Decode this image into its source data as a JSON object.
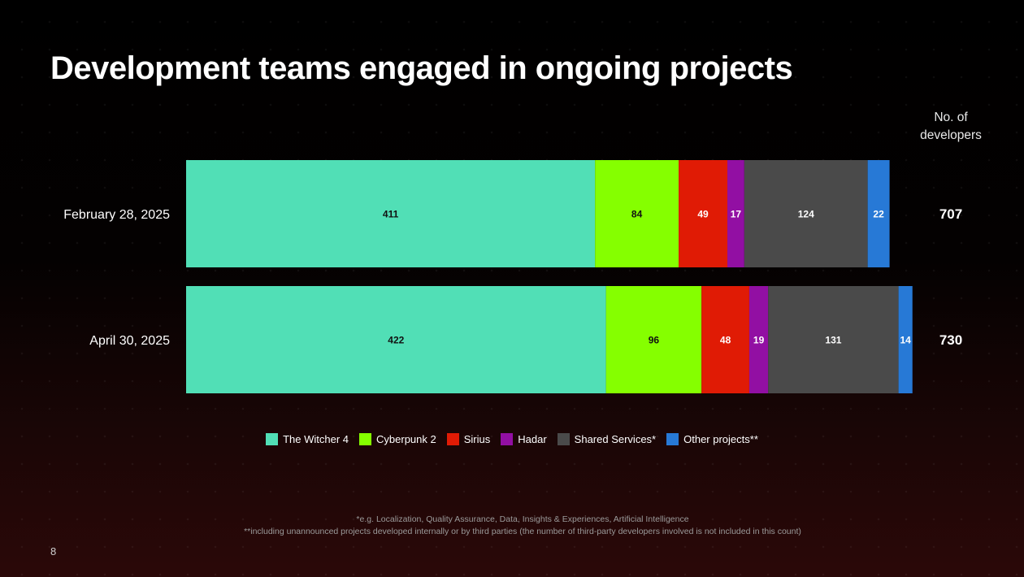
{
  "title": "Development teams engaged in ongoing projects",
  "total_header": [
    "No. of",
    "developers"
  ],
  "chart_data": {
    "type": "bar",
    "orientation": "horizontal",
    "stacked": true,
    "categories": [
      "February 28, 2025",
      "April 30, 2025"
    ],
    "series": [
      {
        "name": "The Witcher 4",
        "values": [
          411,
          422
        ],
        "color": "#51dfb6",
        "label_color": "#111111"
      },
      {
        "name": "Cyberpunk 2",
        "values": [
          84,
          96
        ],
        "color": "#85ff00",
        "label_color": "#111111"
      },
      {
        "name": "Sirius",
        "values": [
          49,
          48
        ],
        "color": "#e01b05",
        "label_color": "#ffffff"
      },
      {
        "name": "Hadar",
        "values": [
          17,
          19
        ],
        "color": "#920fa3",
        "label_color": "#ffffff"
      },
      {
        "name": "Shared Services*",
        "values": [
          124,
          131
        ],
        "color": "#4a4a4a",
        "label_color": "#ffffff"
      },
      {
        "name": "Other projects**",
        "values": [
          22,
          14
        ],
        "color": "#2779d6",
        "label_color": "#ffffff"
      }
    ],
    "totals": [
      707,
      730
    ],
    "legend_position": "bottom",
    "grid": false
  },
  "footnotes": [
    "*e.g. Localization, Quality Assurance, Data, Insights & Experiences, Artificial Intelligence",
    "**including unannounced projects developed internally or by third parties (the number of third-party developers involved is not included in this count)"
  ],
  "page_number": "8"
}
